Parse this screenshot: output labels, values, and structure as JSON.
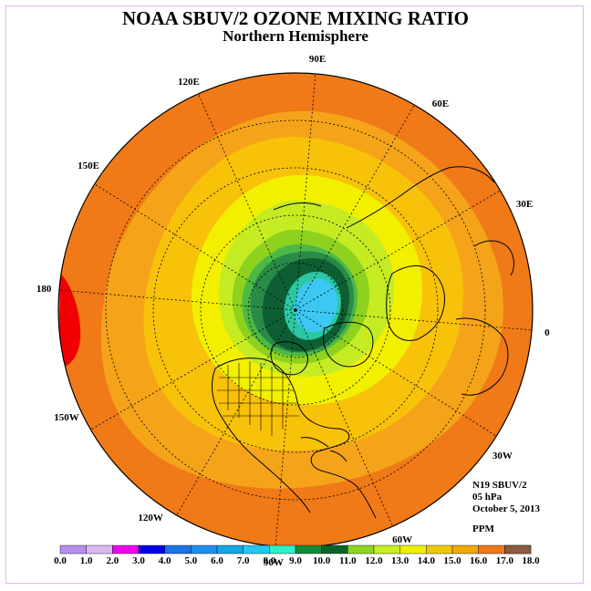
{
  "title": "NOAA SBUV/2 OZONE MIXING RATIO",
  "subtitle": "Northern Hemisphere",
  "info": {
    "instrument": "N19 SBUV/2",
    "level": "05 hPa",
    "date": "October 5, 2013",
    "units": "PPM"
  },
  "longitude_labels": [
    {
      "text": "90E",
      "lon": 90
    },
    {
      "text": "60E",
      "lon": 60
    },
    {
      "text": "30E",
      "lon": 30
    },
    {
      "text": "0",
      "lon": 0
    },
    {
      "text": "30W",
      "lon": -30
    },
    {
      "text": "60W",
      "lon": -60
    },
    {
      "text": "90W",
      "lon": -90
    },
    {
      "text": "120W",
      "lon": -120
    },
    {
      "text": "150W",
      "lon": -150
    },
    {
      "text": "180",
      "lon": 180
    },
    {
      "text": "150E",
      "lon": 150
    },
    {
      "text": "120E",
      "lon": 120
    }
  ],
  "colorbar": {
    "ticks": [
      "0.0",
      "1.0",
      "2.0",
      "3.0",
      "4.0",
      "5.0",
      "6.0",
      "7.0",
      "8.0",
      "9.0",
      "10.0",
      "11.0",
      "12.0",
      "13.0",
      "14.0",
      "15.0",
      "16.0",
      "17.0",
      "18.0"
    ],
    "colors": [
      "#b78ef0",
      "#d9b8f2",
      "#f000f0",
      "#0000e6",
      "#1874e8",
      "#1e8ff0",
      "#12a6e6",
      "#22c8f2",
      "#2ef0c8",
      "#0f8c3c",
      "#0a6428",
      "#8fd61e",
      "#c6f01e",
      "#f0f000",
      "#f0c800",
      "#f0a800",
      "#f07818",
      "#f00000",
      "#8c5a3c"
    ]
  },
  "legend_colors": {
    "outer": "#f07a18",
    "orange": "#f5a41a",
    "amber": "#f8c10a",
    "yellow": "#f2f000",
    "lime": "#c5ec22",
    "green_light": "#8ed11f",
    "green": "#4cb846",
    "green_dark": "#2a8a48",
    "core_dark": "#0d5f33",
    "teal": "#2bc8a3",
    "cyan": "#3cc8f2",
    "red": "#f00000"
  }
}
